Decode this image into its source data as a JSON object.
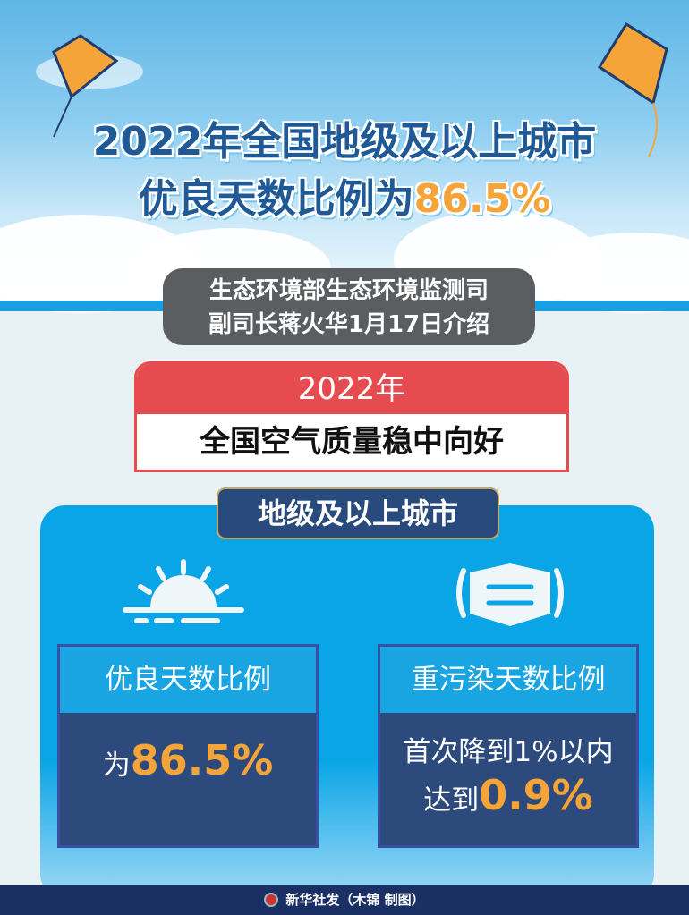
{
  "header": {
    "title_line1": "2022年全国地级及以上城市",
    "title_line2_prefix": "优良天数比例为",
    "title_line2_value": "86.5%"
  },
  "subtitle": {
    "line1": "生态环境部生态环境监测司",
    "line2": "副司长蒋火华1月17日介绍"
  },
  "banner": {
    "year": "2022年",
    "text": "全国空气质量稳中向好"
  },
  "section": {
    "label": "地级及以上城市"
  },
  "cards": [
    {
      "icon": "sun-icon",
      "title": "优良天数比例",
      "prefix": "为",
      "value": "86.5%"
    },
    {
      "icon": "mask-icon",
      "title": "重污染天数比例",
      "line1": "首次降到1%以内",
      "prefix": "达到",
      "value": "0.9%"
    }
  ],
  "footer": {
    "credit": "新华社发（木锦 制图）"
  },
  "colors": {
    "accent": "#f5a43a",
    "navy": "#2c4a7c",
    "red": "#e54b4f",
    "blue": "#0aa5e6"
  }
}
